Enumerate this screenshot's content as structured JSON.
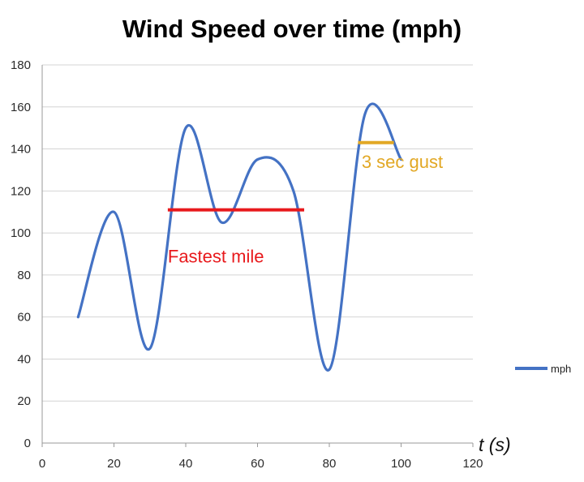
{
  "colors": {
    "series": "#4472c4",
    "grid": "#d4d4d4",
    "axis": "#999999",
    "fastest_mile": "#e8191c",
    "gust": "#e2a825",
    "title": "#000000"
  },
  "chart_data": {
    "type": "line",
    "title": "Wind Speed over time (mph)",
    "xlabel": "t (s)",
    "ylabel": "",
    "xlim": [
      0,
      120
    ],
    "ylim": [
      0,
      180
    ],
    "x_ticks": [
      0,
      20,
      40,
      60,
      80,
      100,
      120
    ],
    "y_ticks": [
      0,
      20,
      40,
      60,
      80,
      100,
      120,
      140,
      160,
      180
    ],
    "grid": "horizontal",
    "legend_position": "right",
    "series": [
      {
        "name": "mph",
        "color": "#4472c4",
        "smooth": true,
        "x": [
          10,
          20,
          30,
          40,
          50,
          60,
          70,
          80,
          90,
          100
        ],
        "y": [
          60,
          110,
          45,
          150,
          105,
          135,
          120,
          35,
          157,
          135
        ]
      }
    ],
    "annotations": [
      {
        "label": "Fastest mile",
        "type": "hline",
        "y": 111,
        "x_start": 35,
        "x_end": 73,
        "color": "#e8191c",
        "label_x": 35,
        "label_y": 86
      },
      {
        "label": "3 sec gust",
        "type": "hline",
        "y": 143,
        "x_start": 88,
        "x_end": 98,
        "color": "#e2a825",
        "label_x": 89,
        "label_y": 131
      }
    ]
  }
}
